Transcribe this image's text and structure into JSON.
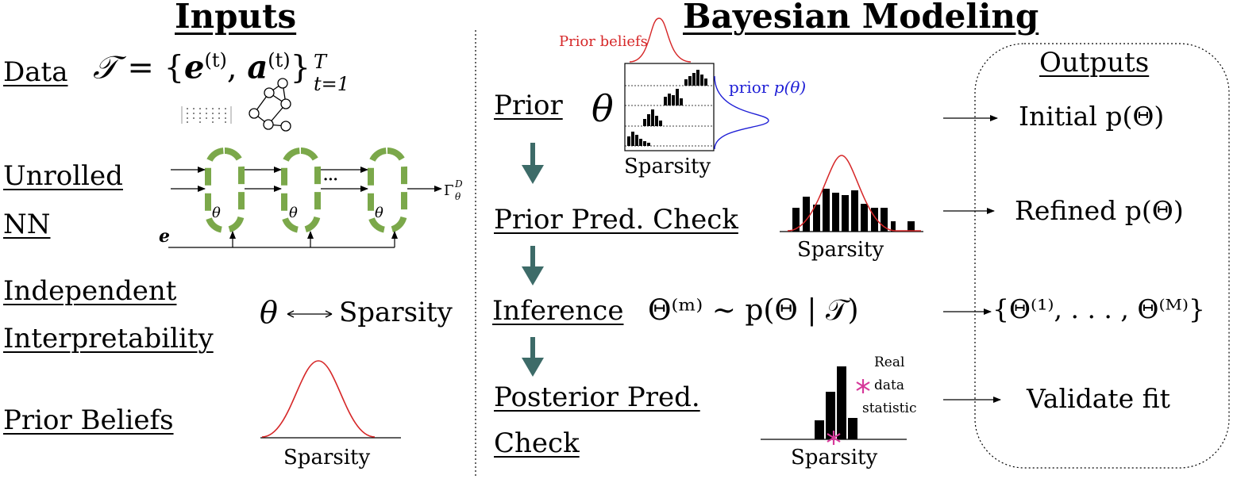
{
  "inputs": {
    "header": "Inputs",
    "data_label": "Data",
    "data_formula": {
      "T": "𝒯",
      "eq": " = {",
      "e": "e",
      "sup_t": "(t)",
      "comma": ", ",
      "a": "a",
      "close": "}",
      "sup_T": "T",
      "sub": "t=1"
    },
    "unrolled_label_1": "Unrolled",
    "unrolled_label_2": "NN",
    "theta_layer": "θ",
    "dots": "···",
    "e_input": "e",
    "gamma_output": "Γ",
    "gamma_sup": "D",
    "gamma_sub": "θ",
    "interp_label_1": "Independent",
    "interp_label_2": "Interpretability",
    "interp_theta": "θ",
    "interp_sparsity": "Sparsity",
    "prior_beliefs_label": "Prior Beliefs",
    "prior_beliefs_axis": "Sparsity"
  },
  "bayes": {
    "header": "Bayesian Modeling",
    "prior_label": "Prior",
    "prior_theta": "θ",
    "prior_beliefs_tag": "Prior beliefs",
    "prior_ptheta_word": "prior ",
    "prior_ptheta_math": "p(θ)",
    "prior_axis": "Sparsity",
    "ppc_label": "Prior Pred. Check",
    "ppc_axis": "Sparsity",
    "inference_label": "Inference",
    "inference_formula": "Θ⁽ᵐ⁾ ∼ p(Θ | 𝒯)",
    "postpc_label_1": "Posterior Pred.",
    "postpc_label_2": "Check",
    "postpc_real_1": "Real",
    "postpc_real_2": "data",
    "postpc_real_3": "statistic",
    "postpc_axis": "Sparsity"
  },
  "outputs": {
    "header": "Outputs",
    "items": [
      "Initial p(Θ)",
      "Refined p(Θ)",
      "{Θ⁽¹⁾, . . . , Θ⁽ᴹ⁾}",
      "Validate fit"
    ]
  },
  "colors": {
    "prior_red": "#d62728",
    "prior_blue": "#1f1fd6",
    "arrow_teal": "#3d6b68",
    "layer_green": "#7ba84a",
    "star_pink": "#d6399a"
  }
}
